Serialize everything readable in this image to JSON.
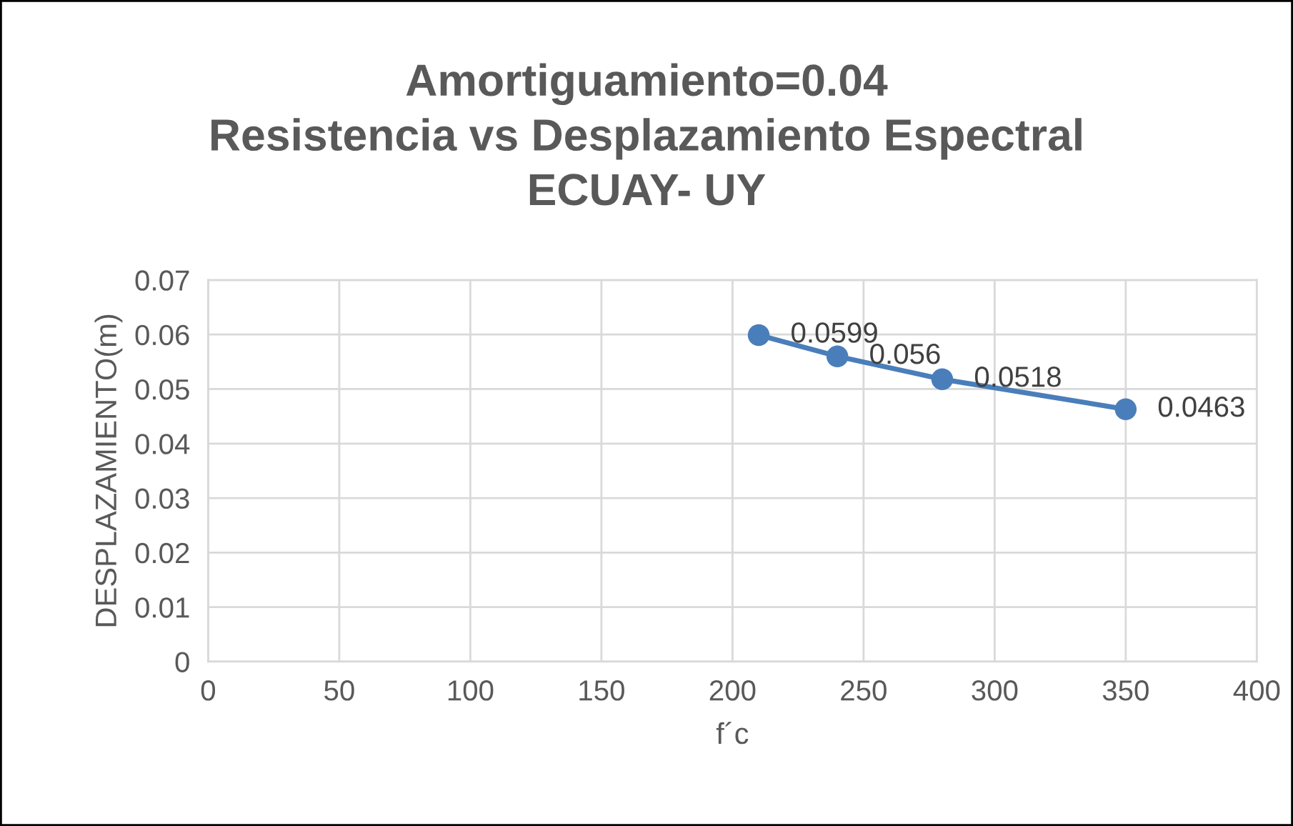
{
  "chart_data": {
    "type": "line",
    "title": "Amortiguamiento=0.04\nResistencia vs Desplazamiento Espectral\nECUAY- UY",
    "xlabel": "f´c",
    "ylabel": "DESPLAZAMIENTO(m)",
    "x": [
      210,
      240,
      280,
      350
    ],
    "series": [
      {
        "color": "#4a7ebb",
        "values": [
          0.0599,
          0.056,
          0.0518,
          0.0463
        ]
      }
    ],
    "xlim": [
      0,
      400
    ],
    "xticks": [
      0,
      50,
      100,
      150,
      200,
      250,
      300,
      350,
      400
    ],
    "ylim": [
      0,
      0.07
    ],
    "yticks": [
      0,
      0.01,
      0.02,
      0.03,
      0.04,
      0.05,
      0.06,
      0.07
    ],
    "grid": true,
    "marker": "circle",
    "line_style": "solid",
    "data_labels": true
  }
}
